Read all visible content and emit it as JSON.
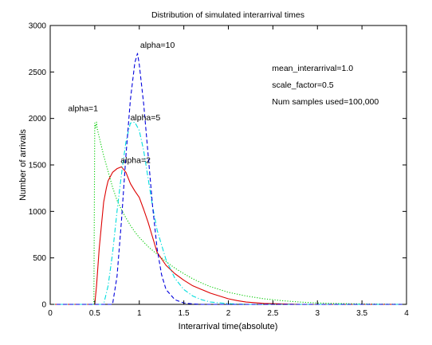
{
  "chart_data": {
    "type": "line",
    "title": "Distribution of simulated interarrival times",
    "xlabel": "Interarrival time(absolute)",
    "ylabel": "Number of arrivals",
    "xlim": [
      0,
      4
    ],
    "ylim": [
      0,
      3000
    ],
    "xticks": [
      0,
      0.5,
      1,
      1.5,
      2,
      2.5,
      3,
      3.5,
      4
    ],
    "xtick_labels": [
      "0",
      "0.5",
      "1",
      "1.5",
      "2",
      "2.5",
      "3",
      "3.5",
      "4"
    ],
    "yticks": [
      0,
      500,
      1000,
      1500,
      2000,
      2500,
      3000
    ],
    "ytick_labels": [
      "0",
      "500",
      "1000",
      "1500",
      "2000",
      "2500",
      "3000"
    ],
    "grid": false,
    "legend": "none",
    "series": [
      {
        "label": "alpha=1",
        "color": "#00cc00",
        "style": "dotted",
        "label_at": [
          0.2,
          2080
        ],
        "x": [
          0,
          0.49,
          0.5,
          0.51,
          0.52,
          0.53,
          0.55,
          0.58,
          0.6,
          0.65,
          0.7,
          0.75,
          0.8,
          0.85,
          0.9,
          0.95,
          1.0,
          1.1,
          1.2,
          1.3,
          1.4,
          1.5,
          1.6,
          1.7,
          1.8,
          1.9,
          2.0,
          2.2,
          2.4,
          2.6,
          2.8,
          3.0,
          3.2,
          3.5,
          4.0
        ],
        "y": [
          0,
          0,
          1950,
          1900,
          1960,
          1880,
          1800,
          1680,
          1600,
          1430,
          1260,
          1120,
          1020,
          930,
          850,
          780,
          720,
          620,
          540,
          460,
          390,
          330,
          275,
          230,
          190,
          160,
          130,
          90,
          60,
          40,
          25,
          15,
          10,
          5,
          0
        ]
      },
      {
        "label": "alpha=2",
        "color": "#dd0000",
        "style": "solid",
        "label_at": [
          0.79,
          1520
        ],
        "x": [
          0,
          0.5,
          0.52,
          0.55,
          0.58,
          0.6,
          0.63,
          0.65,
          0.7,
          0.75,
          0.8,
          0.85,
          0.9,
          0.95,
          1.0,
          1.05,
          1.1,
          1.15,
          1.2,
          1.3,
          1.4,
          1.5,
          1.6,
          1.7,
          1.8,
          1.9,
          2.0,
          2.1,
          2.2,
          2.4,
          2.6,
          2.8,
          3.0,
          4.0
        ],
        "y": [
          0,
          0,
          200,
          600,
          900,
          1100,
          1250,
          1330,
          1420,
          1460,
          1480,
          1420,
          1300,
          1220,
          1150,
          1020,
          880,
          720,
          560,
          420,
          330,
          260,
          200,
          160,
          120,
          90,
          60,
          40,
          25,
          10,
          5,
          0,
          0,
          0
        ]
      },
      {
        "label": "alpha=5",
        "color": "#00dddd",
        "style": "dashdot",
        "label_at": [
          0.9,
          1980
        ],
        "x": [
          0,
          0.6,
          0.65,
          0.7,
          0.75,
          0.8,
          0.85,
          0.9,
          0.95,
          1.0,
          1.05,
          1.1,
          1.15,
          1.2,
          1.3,
          1.4,
          1.5,
          1.6,
          1.7,
          1.8,
          2.0,
          2.2,
          4.0
        ],
        "y": [
          0,
          0,
          200,
          550,
          1000,
          1400,
          1750,
          1950,
          1960,
          1870,
          1650,
          1350,
          1050,
          800,
          480,
          280,
          160,
          90,
          50,
          25,
          8,
          0,
          0
        ]
      },
      {
        "label": "alpha=10",
        "color": "#0000dd",
        "style": "dashed",
        "label_at": [
          1.01,
          2760
        ],
        "x": [
          0,
          0.7,
          0.75,
          0.8,
          0.85,
          0.9,
          0.95,
          0.98,
          1.0,
          1.05,
          1.1,
          1.15,
          1.2,
          1.25,
          1.3,
          1.4,
          1.5,
          1.6,
          1.7,
          4.0
        ],
        "y": [
          0,
          0,
          300,
          900,
          1600,
          2200,
          2600,
          2700,
          2580,
          2150,
          1600,
          1050,
          600,
          320,
          160,
          50,
          15,
          5,
          0,
          0
        ]
      }
    ],
    "annotations": [
      {
        "text": "mean_interarrival=1.0",
        "at": [
          2.49,
          2510
        ]
      },
      {
        "text": "scale_factor=0.5",
        "at": [
          2.49,
          2330
        ]
      },
      {
        "text": "Num samples used=100,000",
        "at": [
          2.49,
          2150
        ]
      }
    ]
  }
}
